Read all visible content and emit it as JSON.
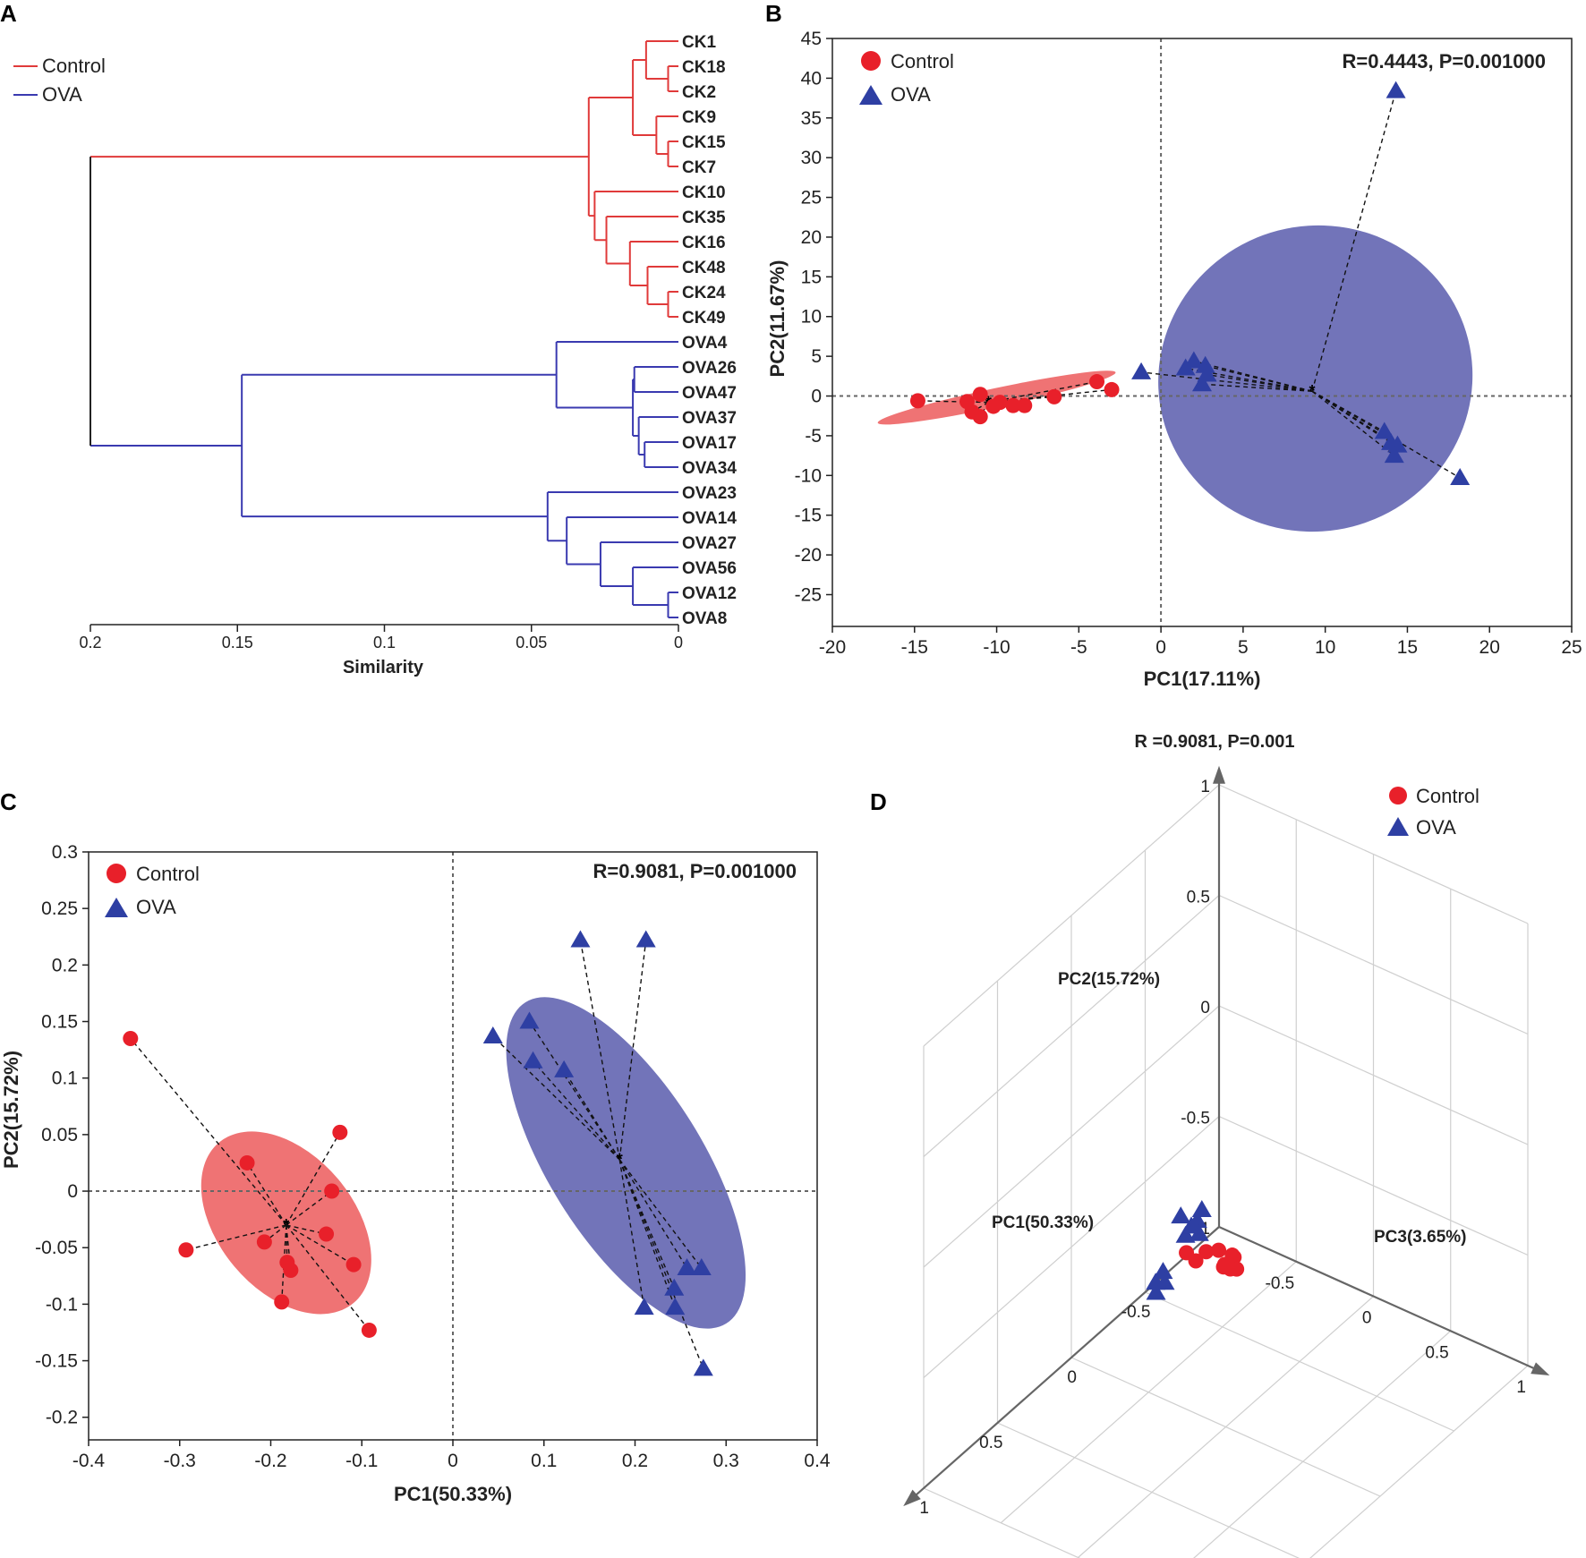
{
  "colors": {
    "control": "#e8202a",
    "ova": "#2e3fa3",
    "control_ellipse": "#ee6b6d",
    "ova_ellipse": "#6a6db5",
    "control_branch": "#e03a3a",
    "ova_branch": "#3a3ab0"
  },
  "chart_data": [
    {
      "panel": "A",
      "type": "dendrogram",
      "legend": [
        "Control",
        "OVA"
      ],
      "xlabel": "Similarity",
      "xticks": [
        "0.2",
        "0.15",
        "0.1",
        "0.05",
        "0"
      ],
      "xlim": [
        0.2,
        0
      ],
      "leaves": [
        "CK1",
        "CK18",
        "CK2",
        "CK9",
        "CK15",
        "CK7",
        "CK10",
        "CK35",
        "CK16",
        "CK48",
        "CK24",
        "CK49",
        "OVA4",
        "OVA26",
        "OVA47",
        "OVA37",
        "OVA17",
        "OVA34",
        "OVA23",
        "OVA14",
        "OVA27",
        "OVA56",
        "OVA12",
        "OVA8"
      ],
      "merges": [
        {
          "a": "CK18",
          "b": "CK2",
          "h": 0.0035
        },
        {
          "a": "CK1",
          "b": "m0",
          "h": 0.011
        },
        {
          "a": "CK15",
          "b": "CK7",
          "h": 0.0035
        },
        {
          "a": "CK9",
          "b": "m2",
          "h": 0.0075
        },
        {
          "a": "m1",
          "b": "m3",
          "h": 0.0155
        },
        {
          "a": "CK24",
          "b": "CK49",
          "h": 0.0035
        },
        {
          "a": "CK48",
          "b": "m5",
          "h": 0.0105
        },
        {
          "a": "CK16",
          "b": "m6",
          "h": 0.0165
        },
        {
          "a": "CK35",
          "b": "m7",
          "h": 0.0245
        },
        {
          "a": "CK10",
          "b": "m8",
          "h": 0.0285
        },
        {
          "a": "m4",
          "b": "m9",
          "h": 0.0305
        },
        {
          "a": "OVA17",
          "b": "OVA34",
          "h": 0.0115
        },
        {
          "a": "OVA37",
          "b": "m11",
          "h": 0.0135
        },
        {
          "a": "OVA26",
          "b": "OVA47",
          "h": 0.015
        },
        {
          "a": "m13",
          "b": "m12",
          "h": 0.0155
        },
        {
          "a": "OVA4",
          "b": "m14",
          "h": 0.0415
        },
        {
          "a": "OVA12",
          "b": "OVA8",
          "h": 0.0035
        },
        {
          "a": "OVA56",
          "b": "m16",
          "h": 0.0155
        },
        {
          "a": "OVA27",
          "b": "m17",
          "h": 0.0265
        },
        {
          "a": "OVA14",
          "b": "m18",
          "h": 0.038
        },
        {
          "a": "OVA23",
          "b": "m19",
          "h": 0.0445
        },
        {
          "a": "m15",
          "b": "m20",
          "h": 0.1485
        },
        {
          "a": "m10",
          "b": "m21",
          "h": 0.2
        }
      ]
    },
    {
      "panel": "B",
      "type": "scatter",
      "stat_label": "R=0.4443, P=0.001000",
      "xlabel": "PC1(17.11%)",
      "ylabel": "PC2(11.67%)",
      "xlim": [
        -20,
        25
      ],
      "ylim": [
        -29,
        45
      ],
      "xticks": [
        -20,
        -15,
        -10,
        -5,
        0,
        5,
        10,
        15,
        20,
        25
      ],
      "yticks": [
        45,
        40,
        35,
        30,
        25,
        20,
        15,
        10,
        5,
        0,
        -5,
        -10,
        -15,
        -20,
        -25
      ],
      "legend": [
        "Control",
        "OVA"
      ],
      "series": [
        {
          "name": "Control",
          "centroid": [
            -10.5,
            -0.8
          ],
          "ellipse": {
            "cx": -10.0,
            "cy": -0.2,
            "rx": 7.4,
            "ry": 1.2,
            "angle": -12
          },
          "points": [
            [
              -14.8,
              -0.6
            ],
            [
              -11.8,
              -0.7
            ],
            [
              -11.0,
              0.2
            ],
            [
              -11.5,
              -2.0
            ],
            [
              -11.0,
              -2.6
            ],
            [
              -10.2,
              -1.3
            ],
            [
              -9.8,
              -0.8
            ],
            [
              -9.0,
              -1.2
            ],
            [
              -8.3,
              -1.2
            ],
            [
              -6.5,
              -0.1
            ],
            [
              -3.9,
              1.8
            ],
            [
              -3.0,
              0.8
            ]
          ]
        },
        {
          "name": "OVA",
          "centroid": [
            9.2,
            0.6
          ],
          "ellipse": {
            "cx": 9.4,
            "cy": 2.2,
            "rx": 9.6,
            "ry": 19.2,
            "angle": -20
          },
          "points": [
            [
              -1.2,
              3.0
            ],
            [
              1.5,
              3.5
            ],
            [
              2.0,
              4.4
            ],
            [
              2.7,
              3.8
            ],
            [
              2.8,
              2.7
            ],
            [
              2.5,
              1.5
            ],
            [
              14.3,
              38.4
            ],
            [
              13.6,
              -4.5
            ],
            [
              14.0,
              -5.9
            ],
            [
              14.4,
              -6.2
            ],
            [
              14.2,
              -7.5
            ],
            [
              18.2,
              -10.3
            ]
          ]
        }
      ]
    },
    {
      "panel": "C",
      "type": "scatter",
      "stat_label": "R=0.9081, P=0.001000",
      "xlabel": "PC1(50.33%)",
      "ylabel": "PC2(15.72%)",
      "xlim": [
        -0.4,
        0.4
      ],
      "ylim": [
        -0.22,
        0.3
      ],
      "xticks": [
        "-0.4",
        "-0.3",
        "-0.2",
        "-0.1",
        "0",
        "0.1",
        "0.2",
        "0.3",
        "0.4"
      ],
      "yticks": [
        "0.3",
        "0.25",
        "0.2",
        "0.15",
        "0.1",
        "0.05",
        "0",
        "-0.05",
        "-0.1",
        "-0.15",
        "-0.2"
      ],
      "legend": [
        "Control",
        "OVA"
      ],
      "series": [
        {
          "name": "Control",
          "centroid": [
            -0.183,
            -0.03
          ],
          "ellipse": {
            "cx": -0.183,
            "cy": -0.028,
            "rx": 0.115,
            "ry": 0.06,
            "angle": 50
          },
          "points": [
            [
              -0.354,
              0.135
            ],
            [
              -0.226,
              0.025
            ],
            [
              -0.124,
              0.052
            ],
            [
              -0.133,
              0.0
            ],
            [
              -0.293,
              -0.052
            ],
            [
              -0.207,
              -0.045
            ],
            [
              -0.139,
              -0.038
            ],
            [
              -0.182,
              -0.063
            ],
            [
              -0.178,
              -0.07
            ],
            [
              -0.109,
              -0.065
            ],
            [
              -0.188,
              -0.098
            ],
            [
              -0.092,
              -0.123
            ]
          ]
        },
        {
          "name": "OVA",
          "centroid": [
            0.183,
            0.028
          ],
          "ellipse": {
            "cx": 0.19,
            "cy": 0.025,
            "rx": 0.208,
            "ry": 0.068,
            "angle": 58
          },
          "points": [
            [
              0.044,
              0.137
            ],
            [
              0.084,
              0.15
            ],
            [
              0.088,
              0.115
            ],
            [
              0.122,
              0.107
            ],
            [
              0.14,
              0.222
            ],
            [
              0.212,
              0.222
            ],
            [
              0.21,
              -0.103
            ],
            [
              0.243,
              -0.086
            ],
            [
              0.244,
              -0.103
            ],
            [
              0.257,
              -0.068
            ],
            [
              0.273,
              -0.068
            ],
            [
              0.275,
              -0.157
            ]
          ]
        }
      ]
    },
    {
      "panel": "D",
      "type": "scatter3d",
      "stat_label": "R =0.9081, P=0.001",
      "axis_labels": {
        "pc1": "PC1(50.33%)",
        "pc2": "PC2(15.72%)",
        "pc3": "PC3(3.65%)"
      },
      "tick_labels": {
        "vertical": [
          "1",
          "0.5",
          "0",
          "-0.5",
          "-1"
        ],
        "left": [
          "-0.5",
          "0",
          "0.5",
          "1"
        ],
        "right": [
          "-0.5",
          "0",
          "0.5",
          "1"
        ]
      },
      "legend": [
        "Control",
        "OVA"
      ],
      "series": [
        {
          "name": "Control",
          "points": [
            [
              -0.6,
              -0.75,
              -0.52
            ],
            [
              -0.62,
              -0.8,
              -0.72
            ],
            [
              -0.6,
              -0.75,
              -0.62
            ],
            [
              -0.62,
              -0.82,
              -0.6
            ],
            [
              -0.68,
              -0.87,
              -0.58
            ],
            [
              -0.55,
              -0.8,
              -0.72
            ],
            [
              -0.57,
              -0.8,
              -0.8
            ],
            [
              -0.64,
              -0.78,
              -0.57
            ],
            [
              -0.7,
              -0.9,
              -0.64
            ],
            [
              -0.56,
              -0.78,
              -0.55
            ]
          ]
        },
        {
          "name": "OVA",
          "points": [
            [
              -0.8,
              -0.78,
              -0.92
            ],
            [
              -0.78,
              -0.82,
              -0.93
            ],
            [
              -0.74,
              -0.84,
              -0.88
            ],
            [
              -0.7,
              -0.84,
              -0.93
            ],
            [
              -0.76,
              -0.84,
              -0.95
            ],
            [
              -0.72,
              -0.78,
              -0.98
            ],
            [
              -0.6,
              -0.96,
              -0.98
            ],
            [
              -0.55,
              -0.98,
              -0.98
            ],
            [
              -0.56,
              -0.97,
              -0.93
            ],
            [
              -0.5,
              -0.98,
              -0.93
            ]
          ]
        }
      ]
    }
  ]
}
